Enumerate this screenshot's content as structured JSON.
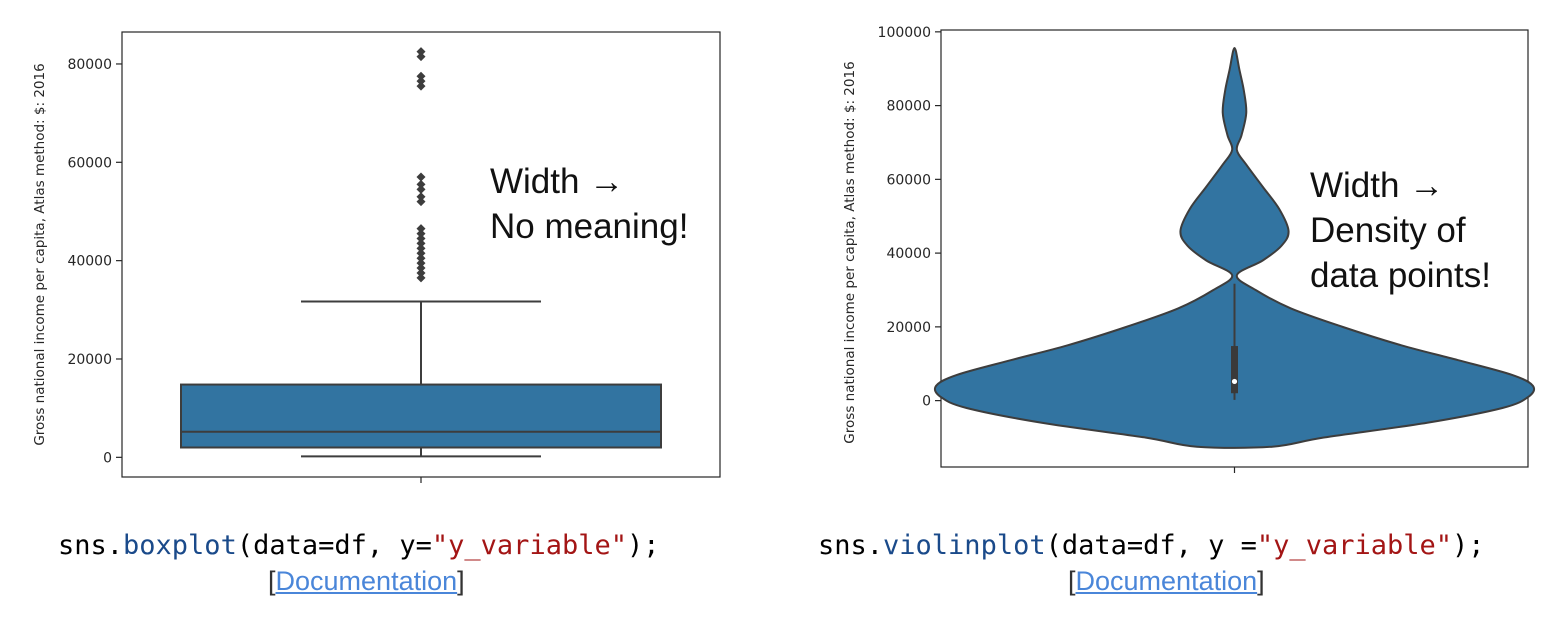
{
  "colors": {
    "fill": "#3274a1",
    "edge": "#3d3d3d",
    "axis": "#262626"
  },
  "chart_data": [
    {
      "type": "box",
      "ylabel": "Gross national income per capita, Atlas method: $: 2016",
      "yticks": [
        0,
        20000,
        40000,
        60000,
        80000
      ],
      "ylim": [
        -4000,
        86500
      ],
      "box": {
        "whisker_low": 200,
        "q1": 2000,
        "median": 5200,
        "q3": 14800,
        "whisker_high": 31700
      },
      "outliers": [
        36500,
        37500,
        38500,
        39500,
        40500,
        41500,
        42500,
        43500,
        44500,
        45500,
        46500,
        52000,
        53000,
        54500,
        55500,
        57000,
        75500,
        76500,
        77500,
        81500,
        82500
      ],
      "annotation": [
        "Width →",
        "No meaning!"
      ]
    },
    {
      "type": "violin",
      "ylabel": "Gross national income per capita, Atlas method: $: 2016",
      "yticks": [
        0,
        20000,
        40000,
        60000,
        80000,
        100000
      ],
      "ylim": [
        -18000,
        100500
      ],
      "density_profile": [
        [
          -12500,
          0.16
        ],
        [
          -10000,
          0.38
        ],
        [
          -6000,
          0.82
        ],
        [
          -2000,
          1.14
        ],
        [
          1000,
          1.25
        ],
        [
          4000,
          1.27
        ],
        [
          7000,
          1.18
        ],
        [
          11000,
          0.95
        ],
        [
          15000,
          0.71
        ],
        [
          20000,
          0.46
        ],
        [
          25000,
          0.24
        ],
        [
          30000,
          0.09
        ],
        [
          34000,
          0.01
        ],
        [
          38000,
          0.12
        ],
        [
          42000,
          0.2
        ],
        [
          46000,
          0.23
        ],
        [
          52000,
          0.19
        ],
        [
          58000,
          0.12
        ],
        [
          64000,
          0.05
        ],
        [
          68000,
          0.01
        ],
        [
          72000,
          0.03
        ],
        [
          78000,
          0.05
        ],
        [
          84000,
          0.04
        ],
        [
          90000,
          0.02
        ],
        [
          95000,
          0.005
        ]
      ],
      "inner_box": {
        "whisker_low": 200,
        "q1": 2000,
        "median": 5200,
        "q3": 14800,
        "whisker_high": 31700
      },
      "annotation": [
        "Width →",
        "Density of",
        "data points!"
      ]
    }
  ],
  "code": [
    {
      "prefix": "sns.",
      "fn": "boxplot",
      "mid": "(data=df, y=",
      "str": "\"y_variable\"",
      "end": ");"
    },
    {
      "prefix": "sns.",
      "fn": "violinplot",
      "mid": "(data=df, y =",
      "str": "\"y_variable\"",
      "end": ");"
    }
  ],
  "docs": [
    {
      "open": "[",
      "link": "Documentation",
      "close": "]"
    },
    {
      "open": "[",
      "link": "Documentation",
      "close": "]"
    }
  ]
}
